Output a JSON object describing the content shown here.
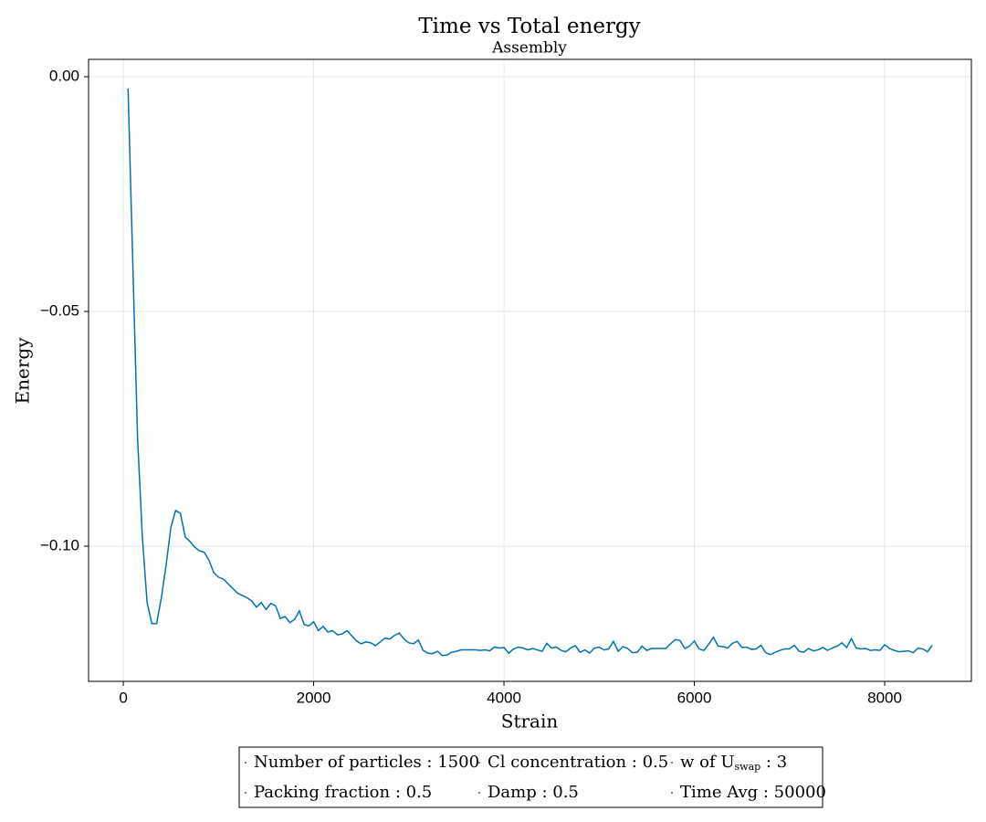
{
  "chart_data": {
    "type": "line",
    "title": "Time vs Total energy",
    "subtitle": "Assembly",
    "xlabel": "Strain",
    "ylabel": "Energy",
    "xlim": [
      -365,
      8911
    ],
    "ylim": [
      -0.1288,
      0.0037
    ],
    "xticks": [
      0,
      2000,
      4000,
      6000,
      8000
    ],
    "yticks": [
      {
        "value": 0,
        "label": "0.00"
      },
      {
        "value": -0.05,
        "label": "−0.05"
      },
      {
        "value": -0.1,
        "label": "−0.10"
      }
    ],
    "grid": true,
    "x": [
      50,
      100,
      150,
      200,
      250,
      300,
      350,
      400,
      450,
      500,
      550,
      600,
      650,
      700,
      750,
      800,
      850,
      900,
      950,
      1000,
      1050,
      1100,
      1150,
      1200,
      1250,
      1300,
      1350,
      1400,
      1450,
      1500,
      1550,
      1600,
      1650,
      1700,
      1750,
      1800,
      1850,
      1900,
      1950,
      2000,
      2050,
      2100,
      2150,
      2200,
      2250,
      2300,
      2350,
      2400,
      2450,
      2500,
      2550,
      2600,
      2650,
      2700,
      2750,
      2800,
      2850,
      2900,
      2950,
      3000,
      3050,
      3100,
      3150,
      3200,
      3250,
      3300,
      3350,
      3400,
      3450,
      3500,
      3550,
      3600,
      3650,
      3700,
      3750,
      3800,
      3850,
      3900,
      3950,
      4000,
      4050,
      4100,
      4150,
      4200,
      4250,
      4300,
      4350,
      4400,
      4450,
      4500,
      4550,
      4600,
      4650,
      4700,
      4750,
      4800,
      4850,
      4900,
      4950,
      5000,
      5050,
      5100,
      5150,
      5200,
      5250,
      5300,
      5350,
      5400,
      5450,
      5500,
      5550,
      5600,
      5650,
      5700,
      5750,
      5800,
      5850,
      5900,
      5950,
      6000,
      6050,
      6100,
      6150,
      6200,
      6250,
      6300,
      6350,
      6400,
      6450,
      6500,
      6550,
      6600,
      6650,
      6700,
      6750,
      6800,
      6850,
      6900,
      6950,
      7000,
      7050,
      7100,
      7150,
      7200,
      7250,
      7300,
      7350,
      7400,
      7450,
      7500,
      7550,
      7600,
      7650,
      7700,
      7750,
      7800,
      7850,
      7900,
      7950,
      8000,
      8050,
      8100,
      8150,
      8200,
      8250,
      8300,
      8350,
      8400,
      8450,
      8500
    ],
    "series": [
      {
        "color": "#0072b2",
        "values": [
          -0.0025,
          -0.04,
          -0.077,
          -0.098,
          -0.112,
          -0.1165,
          -0.1165,
          -0.111,
          -0.104,
          -0.096,
          -0.0924,
          -0.093,
          -0.098,
          -0.099,
          -0.1002,
          -0.101,
          -0.1013,
          -0.103,
          -0.1056,
          -0.1066,
          -0.107,
          -0.108,
          -0.109,
          -0.11,
          -0.1105,
          -0.111,
          -0.1117,
          -0.113,
          -0.112,
          -0.1135,
          -0.1122,
          -0.1127,
          -0.1154,
          -0.115,
          -0.1163,
          -0.1156,
          -0.1138,
          -0.1167,
          -0.117,
          -0.1161,
          -0.118,
          -0.1171,
          -0.1183,
          -0.118,
          -0.1189,
          -0.1187,
          -0.118,
          -0.1191,
          -0.1202,
          -0.1208,
          -0.1204,
          -0.1206,
          -0.1212,
          -0.1204,
          -0.1196,
          -0.1198,
          -0.119,
          -0.1185,
          -0.1198,
          -0.1206,
          -0.1208,
          -0.12,
          -0.1222,
          -0.1228,
          -0.1229,
          -0.1224,
          -0.1233,
          -0.1232,
          -0.1226,
          -0.1224,
          -0.1221,
          -0.1221,
          -0.1221,
          -0.1221,
          -0.1222,
          -0.1221,
          -0.1223,
          -0.1215,
          -0.1217,
          -0.1216,
          -0.1228,
          -0.1219,
          -0.1215,
          -0.1217,
          -0.1221,
          -0.1218,
          -0.1221,
          -0.1224,
          -0.1207,
          -0.1217,
          -0.1215,
          -0.1222,
          -0.1225,
          -0.1217,
          -0.1212,
          -0.1226,
          -0.1221,
          -0.1228,
          -0.1217,
          -0.1215,
          -0.1221,
          -0.1219,
          -0.1203,
          -0.1224,
          -0.1214,
          -0.1218,
          -0.1227,
          -0.1226,
          -0.1213,
          -0.1222,
          -0.1218,
          -0.1218,
          -0.1218,
          -0.1218,
          -0.1208,
          -0.1199,
          -0.1201,
          -0.1218,
          -0.1213,
          -0.1202,
          -0.1219,
          -0.1222,
          -0.1209,
          -0.1194,
          -0.1213,
          -0.1214,
          -0.1217,
          -0.1207,
          -0.1203,
          -0.1216,
          -0.1215,
          -0.122,
          -0.1219,
          -0.1211,
          -0.1227,
          -0.1231,
          -0.1226,
          -0.1222,
          -0.1219,
          -0.1219,
          -0.1211,
          -0.1224,
          -0.1226,
          -0.1218,
          -0.1223,
          -0.1221,
          -0.1216,
          -0.1222,
          -0.1217,
          -0.1213,
          -0.1206,
          -0.1216,
          -0.1197,
          -0.1217,
          -0.1219,
          -0.1218,
          -0.1222,
          -0.1221,
          -0.1222,
          -0.121,
          -0.1218,
          -0.1222,
          -0.1225,
          -0.1224,
          -0.1223,
          -0.1227,
          -0.1217,
          -0.1219,
          -0.1225,
          -0.1211
        ]
      }
    ],
    "legend": {
      "items": [
        {
          "label": "Number of particles : 1500"
        },
        {
          "label": "Cl concentration : 0.5"
        },
        {
          "label": "w of U",
          "subscript": "swap",
          "suffix": " : 3"
        },
        {
          "label": "Packing fraction : 0.5"
        },
        {
          "label": "Damp : 0.5"
        },
        {
          "label": "Time Avg : 50000"
        }
      ]
    }
  }
}
